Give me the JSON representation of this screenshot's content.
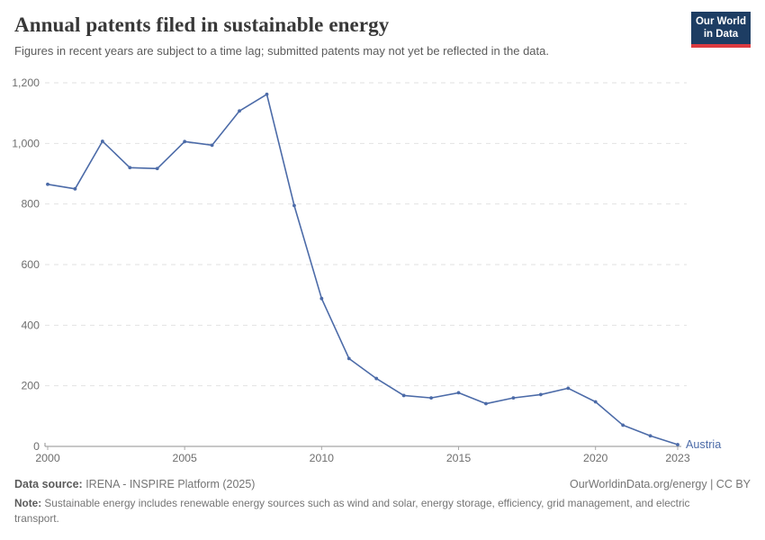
{
  "header": {
    "title": "Annual patents filed in sustainable energy",
    "subtitle": "Figures in recent years are subject to a time lag; submitted patents may not yet be reflected in the data.",
    "logo": {
      "line1": "Our World",
      "line2": "in Data"
    }
  },
  "chart_data": {
    "type": "line",
    "title": "Annual patents filed in sustainable energy",
    "xlabel": "",
    "ylabel": "",
    "x": [
      2000,
      2001,
      2002,
      2003,
      2004,
      2005,
      2006,
      2007,
      2008,
      2009,
      2010,
      2011,
      2012,
      2013,
      2014,
      2015,
      2016,
      2017,
      2018,
      2019,
      2020,
      2021,
      2022,
      2023
    ],
    "series": [
      {
        "name": "Austria",
        "color": "#4c6ba8",
        "values": [
          865,
          850,
          1007,
          920,
          917,
          1006,
          994,
          1107,
          1162,
          795,
          488,
          290,
          224,
          168,
          160,
          177,
          141,
          160,
          171,
          192,
          147,
          70,
          35,
          6
        ]
      }
    ],
    "x_ticks": [
      2000,
      2005,
      2010,
      2015,
      2020,
      2023
    ],
    "y_ticks": [
      0,
      200,
      400,
      600,
      800,
      1000,
      1200
    ],
    "xlim": [
      2000,
      2023
    ],
    "ylim": [
      0,
      1200
    ],
    "grid": "horizontal-dashed",
    "legend_position": "end-of-line",
    "entity_label": "Austria"
  },
  "footer": {
    "datasource_label": "Data source:",
    "datasource_value": " IRENA - INSPIRE Platform (2025)",
    "license": "OurWorldinData.org/energy | CC BY",
    "note_label": "Note:",
    "note_value": " Sustainable energy includes renewable energy sources such as wind and solar, energy storage, efficiency, grid management, and electric transport."
  },
  "colors": {
    "line": "#4c6ba8",
    "grid": "#e2e2e2",
    "axis": "#8f8f8f",
    "tick": "#a8a8a8",
    "tick_label": "#6e6e6e",
    "title": "#383838",
    "subtitle": "#5b5b5b",
    "footer_text": "#757575",
    "logo_bg": "#1d3d63",
    "logo_bar": "#dc3b40"
  }
}
